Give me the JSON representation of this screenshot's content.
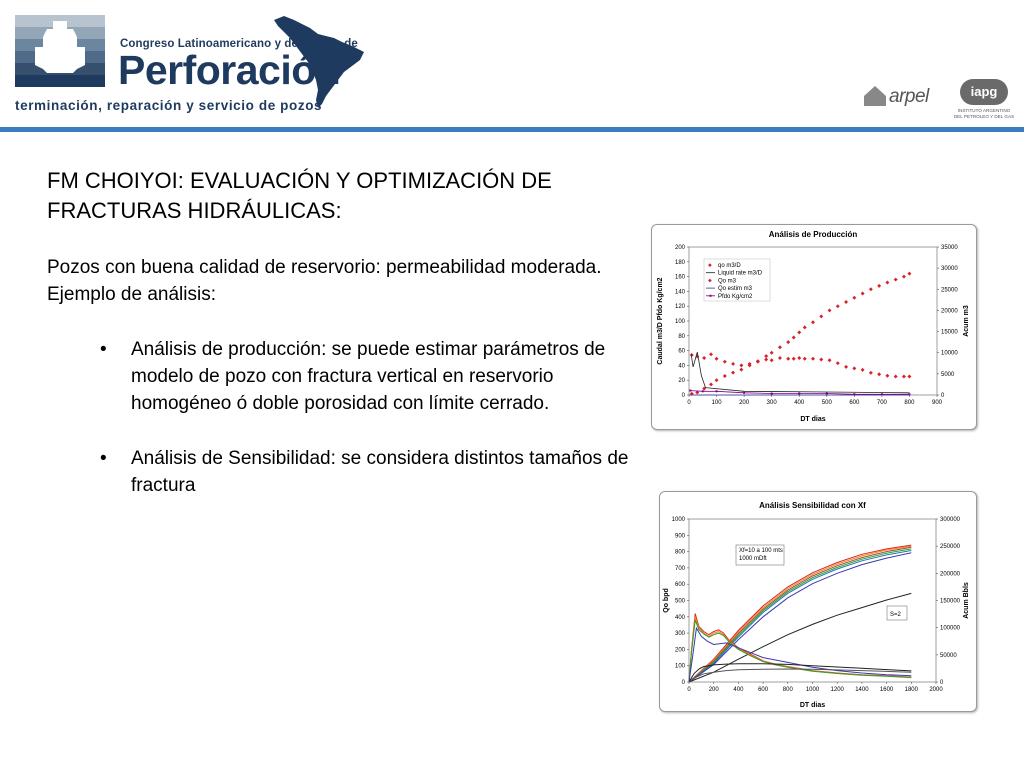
{
  "header": {
    "congreso_text": "Congreso Latinoamericano y del Caribe de",
    "perforacion_text": "Perforación",
    "subtitle": "terminación, reparación y servicio de pozos",
    "arpel_text": "arpel",
    "iapg_badge": "iapg",
    "iapg_line1": "INSTITUTO ARGENTINO",
    "iapg_line2": "DEL PETROLEO Y DEL GAS",
    "rule_color": "#3a7dc0",
    "brand_color": "#1f3a5f"
  },
  "slide": {
    "title": "FM CHOIYOI: EVALUACIÓN Y OPTIMIZACIÓN DE FRACTURAS HIDRÁULICAS:",
    "intro": "Pozos con buena calidad de reservorio: permeabilidad moderada. Ejemplo de análisis:",
    "bullets": [
      {
        "symbol": "•",
        "text": "Análisis de producción:  se puede estimar parámetros de modelo de pozo con fractura vertical en reservorio homogéneo ó doble porosidad con límite cerrado."
      },
      {
        "symbol": "•",
        "text": "Análisis de Sensibilidad: se considera distintos tamaños de fractura"
      }
    ]
  },
  "chart_data": [
    {
      "type": "scatter",
      "title": "Análisis de Producción",
      "xlabel": "DT dias",
      "ylabel": "Caudal m3/D    Pfdo Kg/cm2",
      "y2label": "Acum m3",
      "xlim": [
        0,
        900
      ],
      "ylim": [
        0,
        200
      ],
      "y2lim": [
        0,
        35000
      ],
      "x_ticks": [
        "0",
        "100",
        "200",
        "300",
        "400",
        "500",
        "600",
        "700",
        "800",
        "900"
      ],
      "y_ticks": [
        "0",
        "20",
        "40",
        "60",
        "80",
        "100",
        "120",
        "140",
        "160",
        "180",
        "200"
      ],
      "y2_ticks": [
        "0",
        "5000",
        "10000",
        "15000",
        "20000",
        "25000",
        "30000",
        "35000"
      ],
      "legend_position": "top-left",
      "series": [
        {
          "name": "qo m3/D",
          "axis": "left",
          "style": "markers",
          "color": "#d8232a",
          "x": [
            10,
            30,
            55,
            80,
            100,
            130,
            160,
            190,
            220,
            250,
            280,
            300,
            330,
            360,
            380,
            400,
            420,
            450,
            480,
            510,
            540,
            570,
            600,
            630,
            660,
            690,
            720,
            750,
            780,
            800
          ],
          "y": [
            54,
            52,
            50,
            55,
            49,
            45,
            42,
            40,
            42,
            45,
            48,
            47,
            50,
            49,
            49,
            50,
            49,
            49,
            48,
            47,
            43,
            38,
            36,
            34,
            30,
            28,
            26,
            25,
            25,
            25
          ]
        },
        {
          "name": "Liquid rate m3/D",
          "axis": "left",
          "style": "line",
          "color": "#222222",
          "x": [
            8,
            15,
            30,
            45,
            60,
            200,
            500,
            800
          ],
          "y": [
            55,
            38,
            58,
            26,
            10,
            5,
            4,
            3
          ]
        },
        {
          "name": "Qo m3",
          "axis": "right",
          "style": "markers",
          "color": "#d8232a",
          "x": [
            10,
            30,
            55,
            80,
            100,
            130,
            160,
            190,
            220,
            250,
            280,
            300,
            330,
            360,
            380,
            400,
            420,
            450,
            480,
            510,
            540,
            570,
            600,
            630,
            660,
            690,
            720,
            750,
            780,
            800
          ],
          "y": [
            300,
            600,
            1500,
            2500,
            3500,
            4500,
            5300,
            6000,
            7000,
            8000,
            9200,
            10000,
            11300,
            12500,
            13600,
            14800,
            16000,
            17200,
            18600,
            20000,
            21000,
            22000,
            23000,
            24000,
            25000,
            25800,
            26600,
            27300,
            28000,
            28700
          ]
        },
        {
          "name": "Qo estim m3",
          "axis": "right",
          "style": "line",
          "color": "#3333aa",
          "x": [
            0,
            800
          ],
          "y": [
            0,
            0
          ]
        },
        {
          "name": "Pfdo Kg/cm2",
          "axis": "left",
          "style": "line-markers",
          "color": "#800080",
          "x": [
            5,
            50,
            100,
            200,
            300,
            400,
            500,
            600,
            700,
            800
          ],
          "y": [
            6,
            5,
            5,
            3,
            2,
            2,
            2,
            1,
            1,
            1
          ]
        }
      ]
    },
    {
      "type": "line",
      "title": "Análisis Sensibilidad con Xf",
      "xlabel": "DT dias",
      "ylabel": "Qo  bpd",
      "y2label": "Acum Bbls",
      "xlim": [
        0,
        2000
      ],
      "ylim": [
        0,
        1000
      ],
      "y2lim": [
        0,
        300000
      ],
      "x_ticks": [
        "0",
        "200",
        "400",
        "600",
        "800",
        "1000",
        "1200",
        "1400",
        "1600",
        "1800",
        "2000"
      ],
      "y_ticks": [
        "0",
        "100",
        "200",
        "300",
        "400",
        "500",
        "600",
        "700",
        "800",
        "900",
        "1000"
      ],
      "y2_ticks": [
        "0",
        "50000",
        "100000",
        "150000",
        "200000",
        "250000",
        "300000"
      ],
      "annotations": [
        "Xf=10 a 100 mts 1000 mDft",
        "S=2"
      ],
      "series": [
        {
          "name": "",
          "axis": "right",
          "color": "#d62728",
          "x": [
            0,
            200,
            400,
            600,
            800,
            1000,
            1200,
            1400,
            1600,
            1800
          ],
          "y": [
            0,
            42000,
            95000,
            140000,
            175000,
            201000,
            220000,
            235000,
            245000,
            252000
          ]
        },
        {
          "name": "",
          "axis": "right",
          "color": "#ff7f0e",
          "x": [
            0,
            200,
            400,
            600,
            800,
            1000,
            1200,
            1400,
            1600,
            1800
          ],
          "y": [
            0,
            40000,
            92000,
            137000,
            172000,
            198000,
            217000,
            232000,
            243000,
            250000
          ]
        },
        {
          "name": "",
          "axis": "right",
          "color": "#8c564b",
          "x": [
            0,
            200,
            400,
            600,
            800,
            1000,
            1200,
            1400,
            1600,
            1800
          ],
          "y": [
            0,
            38000,
            89000,
            134000,
            169000,
            195000,
            214000,
            229000,
            240000,
            248000
          ]
        },
        {
          "name": "",
          "axis": "right",
          "color": "#2ca02c",
          "x": [
            0,
            200,
            400,
            600,
            800,
            1000,
            1200,
            1400,
            1600,
            1800
          ],
          "y": [
            0,
            36000,
            86000,
            131000,
            166000,
            192000,
            211000,
            226000,
            237000,
            245000
          ]
        },
        {
          "name": "",
          "axis": "right",
          "color": "#1f77b4",
          "x": [
            0,
            200,
            400,
            600,
            800,
            1000,
            1200,
            1400,
            1600,
            1800
          ],
          "y": [
            0,
            34000,
            83000,
            128000,
            163000,
            189000,
            208000,
            223000,
            234000,
            242000
          ]
        },
        {
          "name": "",
          "axis": "right",
          "color": "#3a3ab0",
          "x": [
            0,
            200,
            400,
            600,
            800,
            1000,
            1200,
            1400,
            1600,
            1800
          ],
          "y": [
            0,
            32000,
            78000,
            120000,
            155000,
            181000,
            200000,
            216000,
            228000,
            238000
          ]
        },
        {
          "name": "",
          "axis": "right",
          "color": "#222222",
          "x": [
            0,
            200,
            400,
            600,
            800,
            1000,
            1200,
            1400,
            1600,
            1800
          ],
          "y": [
            0,
            18000,
            42000,
            65000,
            87000,
            106000,
            123000,
            137000,
            151000,
            163000
          ]
        },
        {
          "name": "",
          "axis": "left",
          "color": "#d62728",
          "x": [
            0,
            20,
            50,
            80,
            120,
            160,
            200,
            240,
            280,
            320,
            400,
            500,
            600,
            700,
            800,
            1000,
            1200,
            1400,
            1600,
            1800
          ],
          "y": [
            0,
            200,
            420,
            340,
            310,
            290,
            310,
            320,
            300,
            260,
            210,
            170,
            130,
            110,
            95,
            70,
            55,
            45,
            38,
            30
          ]
        },
        {
          "name": "",
          "axis": "left",
          "color": "#ff7f0e",
          "x": [
            0,
            20,
            50,
            80,
            120,
            160,
            200,
            240,
            280,
            320,
            400,
            500,
            600,
            700,
            800,
            1000,
            1200,
            1400,
            1600,
            1800
          ],
          "y": [
            0,
            190,
            400,
            330,
            300,
            280,
            300,
            310,
            290,
            255,
            205,
            165,
            128,
            108,
            93,
            68,
            53,
            43,
            36,
            28
          ]
        },
        {
          "name": "",
          "axis": "left",
          "color": "#2ca02c",
          "x": [
            0,
            20,
            50,
            80,
            120,
            160,
            200,
            240,
            280,
            320,
            400,
            500,
            600,
            700,
            800,
            1000,
            1200,
            1400,
            1600,
            1800
          ],
          "y": [
            0,
            180,
            380,
            320,
            295,
            275,
            290,
            300,
            285,
            250,
            200,
            160,
            125,
            105,
            90,
            66,
            52,
            42,
            35,
            27
          ]
        },
        {
          "name": "",
          "axis": "left",
          "color": "#3a3ab0",
          "x": [
            0,
            30,
            60,
            100,
            150,
            200,
            300,
            400,
            500,
            600,
            800,
            1000,
            1200,
            1400,
            1600,
            1800
          ],
          "y": [
            0,
            160,
            330,
            280,
            250,
            230,
            240,
            210,
            180,
            150,
            120,
            90,
            70,
            55,
            45,
            38
          ]
        },
        {
          "name": "",
          "axis": "left",
          "color": "#222222",
          "x": [
            0,
            40,
            80,
            120,
            160,
            200,
            300,
            400,
            600,
            800,
            1000,
            1200,
            1400,
            1600,
            1800
          ],
          "y": [
            0,
            50,
            80,
            95,
            100,
            105,
            110,
            112,
            112,
            108,
            100,
            92,
            84,
            76,
            68
          ]
        },
        {
          "name": "",
          "axis": "left",
          "color": "#555555",
          "x": [
            0,
            60,
            120,
            200,
            300,
            400,
            600,
            800,
            1000,
            1200,
            1400,
            1600,
            1800
          ],
          "y": [
            0,
            30,
            50,
            60,
            70,
            75,
            78,
            80,
            78,
            74,
            70,
            65,
            60
          ]
        }
      ]
    }
  ]
}
